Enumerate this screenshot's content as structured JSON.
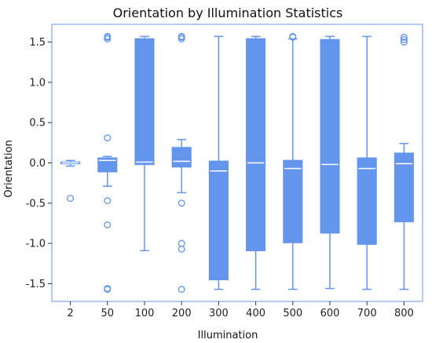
{
  "chart_data": {
    "type": "box",
    "title": "Orientation by Illumination Statistics",
    "xlabel": "Illumination",
    "ylabel": "Orientation",
    "ylim": [
      -1.72,
      1.72
    ],
    "yticks": [
      "-1.5",
      "-1.0",
      "-0.5",
      "0.0",
      "0.5",
      "1.0",
      "1.5"
    ],
    "categories": [
      "2",
      "50",
      "100",
      "200",
      "300",
      "400",
      "500",
      "600",
      "700",
      "800"
    ],
    "boxes": [
      {
        "category": "2",
        "whisker_low": -0.04,
        "q1": -0.01,
        "median": 0.0,
        "q3": 0.01,
        "whisker_high": 0.03,
        "outliers": [
          -0.44
        ]
      },
      {
        "category": "50",
        "whisker_low": -0.29,
        "q1": -0.11,
        "median": 0.03,
        "q3": 0.06,
        "whisker_high": 0.08,
        "outliers": [
          0.31,
          -0.47,
          -0.77,
          1.54,
          1.56,
          1.57,
          -1.56,
          -1.57
        ]
      },
      {
        "category": "100",
        "whisker_low": -1.09,
        "q1": -0.02,
        "median": 0.01,
        "q3": 1.54,
        "whisker_high": 1.57,
        "outliers": []
      },
      {
        "category": "200",
        "whisker_low": -0.37,
        "q1": -0.05,
        "median": 0.02,
        "q3": 0.19,
        "whisker_high": 0.29,
        "outliers": [
          -0.5,
          -1.0,
          -1.07,
          -1.57,
          1.54,
          1.56,
          1.57
        ]
      },
      {
        "category": "300",
        "whisker_low": -1.57,
        "q1": -1.45,
        "median": -0.1,
        "q3": 0.02,
        "whisker_high": 1.57,
        "outliers": []
      },
      {
        "category": "400",
        "whisker_low": -1.57,
        "q1": -1.09,
        "median": 0.0,
        "q3": 1.54,
        "whisker_high": 1.57,
        "outliers": []
      },
      {
        "category": "500",
        "whisker_low": -1.57,
        "q1": -0.99,
        "median": -0.07,
        "q3": 0.03,
        "whisker_high": 1.54,
        "outliers": [
          1.56,
          1.57
        ]
      },
      {
        "category": "600",
        "whisker_low": -1.56,
        "q1": -0.87,
        "median": -0.02,
        "q3": 1.53,
        "whisker_high": 1.57,
        "outliers": []
      },
      {
        "category": "700",
        "whisker_low": -1.57,
        "q1": -1.01,
        "median": -0.07,
        "q3": 0.06,
        "whisker_high": 1.57,
        "outliers": []
      },
      {
        "category": "800",
        "whisker_low": -1.57,
        "q1": -0.73,
        "median": -0.01,
        "q3": 0.12,
        "whisker_high": 0.24,
        "outliers": [
          1.5,
          1.53,
          1.56
        ]
      }
    ],
    "box_color": "#6495ED",
    "median_color": "#ffffff",
    "grid": false
  }
}
